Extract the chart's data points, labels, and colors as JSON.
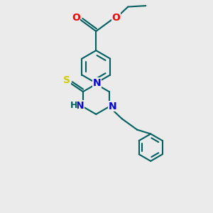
{
  "bg_color": "#ebebeb",
  "bond_color": "#006060",
  "atom_colors": {
    "N": "#0000ee",
    "O": "#ff0000",
    "S": "#cccc00",
    "H": "#006060"
  },
  "bond_width": 1.5,
  "font_size_atom": 10,
  "font_size_h": 9
}
